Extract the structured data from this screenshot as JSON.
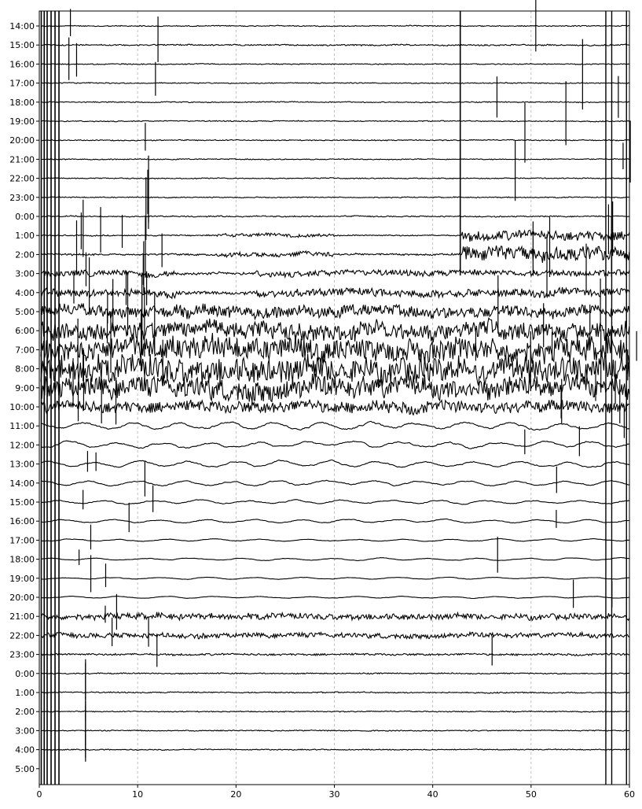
{
  "chart_data": {
    "type": "line",
    "title": "",
    "xlabel": "",
    "ylabel": "",
    "xlim": [
      0,
      60
    ],
    "xticks": [
      "0",
      "10",
      "20",
      "30",
      "40",
      "50",
      "60"
    ],
    "grid": "vertical dashed at x ticks",
    "row_labels": [
      "14:00",
      "15:00",
      "16:00",
      "17:00",
      "18:00",
      "19:00",
      "20:00",
      "21:00",
      "22:00",
      "23:00",
      "0:00",
      "1:00",
      "2:00",
      "3:00",
      "4:00",
      "5:00",
      "6:00",
      "7:00",
      "8:00",
      "9:00",
      "10:00",
      "11:00",
      "12:00",
      "13:00",
      "14:00",
      "15:00",
      "16:00",
      "17:00",
      "18:00",
      "19:00",
      "20:00",
      "21:00",
      "22:00",
      "23:00",
      "0:00",
      "1:00",
      "2:00",
      "3:00",
      "4:00",
      "5:00"
    ],
    "row_relative_amplitude": [
      0.05,
      0.07,
      0.05,
      0.05,
      0.05,
      0.05,
      0.05,
      0.05,
      0.05,
      0.05,
      0.06,
      0.2,
      0.3,
      0.3,
      0.4,
      0.6,
      0.9,
      1.2,
      1.3,
      1.1,
      0.6,
      0.45,
      0.4,
      0.35,
      0.3,
      0.25,
      0.2,
      0.15,
      0.15,
      0.12,
      0.12,
      0.3,
      0.25,
      0.1,
      0.06,
      0.06,
      0.05,
      0.05,
      0.05,
      0
    ],
    "trace_color": "#000000",
    "grid_color": "#b0b0b0"
  }
}
